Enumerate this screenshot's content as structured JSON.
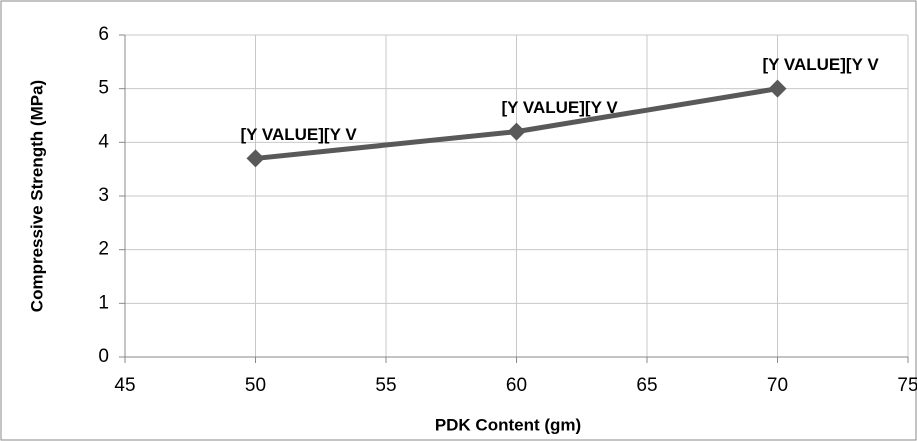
{
  "chart_data": {
    "type": "line",
    "x_label": "PDK Content (gm)",
    "y_label": "Compressive  Strength (MPa)",
    "series": [
      {
        "x": [
          50,
          60,
          70
        ],
        "values": [
          3.7,
          4.2,
          5.0
        ],
        "color": "#595959",
        "value_labels": [
          "[Y VALUE][Y V",
          "[Y VALUE][Y V",
          "[Y VALUE][Y V"
        ]
      }
    ],
    "xlim": [
      45,
      75
    ],
    "xticks": [
      45,
      50,
      55,
      60,
      65,
      70,
      75
    ],
    "ylim": [
      0,
      6
    ],
    "yticks": [
      0,
      1,
      2,
      3,
      4,
      5,
      6
    ],
    "grid": true
  }
}
